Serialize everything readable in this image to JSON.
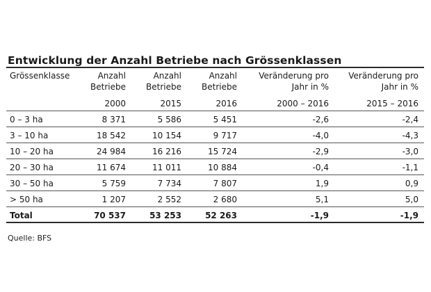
{
  "title": "Entwicklung der Anzahl Betriebe nach Grössenklassen",
  "header": {
    "col1": "Grössenklasse",
    "col2_line1": "Anzahl",
    "col2_line2": "Betriebe",
    "col3_line1": "Anzahl",
    "col3_line2": "Betriebe",
    "col4_line1": "Anzahl",
    "col4_line2": "Betriebe",
    "col5_line1": "Veränderung pro",
    "col5_line2": "Jahr in %",
    "col6_line1": "Veränderung pro",
    "col6_line2": "Jahr in %"
  },
  "years": [
    "",
    "2000",
    "2015",
    "2016",
    "2000 – 2016",
    "2015 – 2016"
  ],
  "rows": [
    {
      "klasse": "0 – 3 ha",
      "b2000": "8 371",
      "b2015": "5 586",
      "b2016": "5 451",
      "v1": "-2,6",
      "v2": "-2,4"
    },
    {
      "klasse": "3 – 10 ha",
      "b2000": "18 542",
      "b2015": "10 154",
      "b2016": "9 717",
      "v1": "-4,0",
      "v2": "-4,3"
    },
    {
      "klasse": "10 – 20 ha",
      "b2000": "24 984",
      "b2015": "16 216",
      "b2016": "15 724",
      "v1": "-2,9",
      "v2": "-3,0"
    },
    {
      "klasse": "20 – 30 ha",
      "b2000": "11 674",
      "b2015": "11 011",
      "b2016": "10 884",
      "v1": "-0,4",
      "v2": "-1,1"
    },
    {
      "klasse": "30 – 50 ha",
      "b2000": "5 759",
      "b2015": "7 734",
      "b2016": "7 807",
      "v1": "1,9",
      "v2": "0,9"
    },
    {
      "klasse": "> 50 ha",
      "b2000": "1 207",
      "b2015": "2 552",
      "b2016": "2 680",
      "v1": "5,1",
      "v2": "5,0"
    }
  ],
  "total": {
    "klasse": "Total",
    "b2000": "70 537",
    "b2015": "53 253",
    "b2016": "52 263",
    "v1": "-1,9",
    "v2": "-1,9"
  },
  "source": "Quelle: BFS"
}
